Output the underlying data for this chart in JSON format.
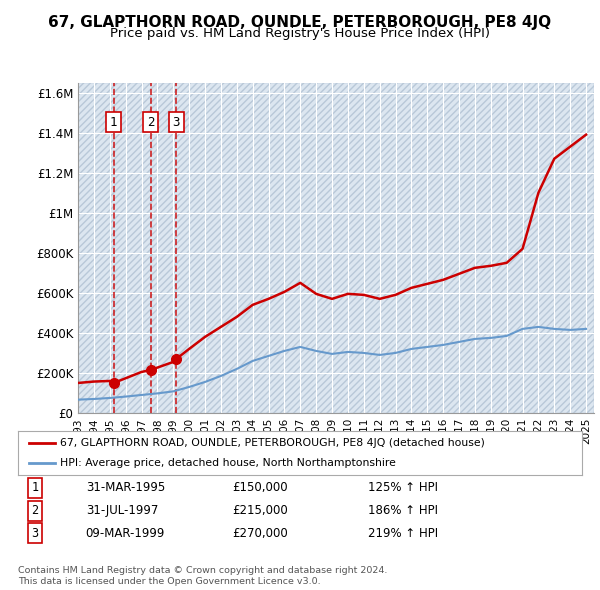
{
  "title": "67, GLAPTHORN ROAD, OUNDLE, PETERBOROUGH, PE8 4JQ",
  "subtitle": "Price paid vs. HM Land Registry's House Price Index (HPI)",
  "ylabel": "",
  "background_color": "#ffffff",
  "plot_bg_color": "#dce6f0",
  "hatch_color": "#c0cfe0",
  "grid_color": "#ffffff",
  "sale_dates": [
    1995.25,
    1997.58,
    1999.19
  ],
  "sale_prices": [
    150000,
    215000,
    270000
  ],
  "sale_labels": [
    "1",
    "2",
    "3"
  ],
  "red_line_color": "#cc0000",
  "blue_line_color": "#6699cc",
  "dashed_line_color": "#cc0000",
  "hpi_years": [
    1993,
    1994,
    1995,
    1996,
    1997,
    1998,
    1999,
    2000,
    2001,
    2002,
    2003,
    2004,
    2005,
    2006,
    2007,
    2008,
    2009,
    2010,
    2011,
    2012,
    2013,
    2014,
    2015,
    2016,
    2017,
    2018,
    2019,
    2020,
    2021,
    2022,
    2023,
    2024,
    2025
  ],
  "hpi_values": [
    66700,
    70000,
    75000,
    82000,
    90000,
    98000,
    108000,
    130000,
    155000,
    185000,
    220000,
    260000,
    285000,
    310000,
    330000,
    310000,
    295000,
    305000,
    300000,
    290000,
    300000,
    320000,
    330000,
    340000,
    355000,
    370000,
    375000,
    385000,
    420000,
    430000,
    420000,
    415000,
    420000
  ],
  "price_line_years": [
    1993,
    1994,
    1995,
    1995.25,
    1997,
    1997.58,
    1999,
    1999.19,
    2000,
    2001,
    2002,
    2003,
    2004,
    2005,
    2006,
    2007,
    2008,
    2009,
    2010,
    2011,
    2012,
    2013,
    2014,
    2015,
    2016,
    2017,
    2018,
    2019,
    2020,
    2021,
    2022,
    2023,
    2024,
    2025
  ],
  "price_line_values": [
    150000,
    157000,
    160000,
    150000,
    205000,
    215000,
    255000,
    270000,
    320000,
    380000,
    430000,
    480000,
    540000,
    570000,
    605000,
    650000,
    595000,
    570000,
    595000,
    590000,
    570000,
    590000,
    625000,
    645000,
    665000,
    695000,
    725000,
    735000,
    750000,
    820000,
    1100000,
    1270000,
    1330000,
    1390000
  ],
  "legend_red_label": "67, GLAPTHORN ROAD, OUNDLE, PETERBOROUGH, PE8 4JQ (detached house)",
  "legend_blue_label": "HPI: Average price, detached house, North Northamptonshire",
  "table_data": [
    [
      "1",
      "31-MAR-1995",
      "£150,000",
      "125% ↑ HPI"
    ],
    [
      "2",
      "31-JUL-1997",
      "£215,000",
      "186% ↑ HPI"
    ],
    [
      "3",
      "09-MAR-1999",
      "£270,000",
      "219% ↑ HPI"
    ]
  ],
  "copyright_text": "Contains HM Land Registry data © Crown copyright and database right 2024.\nThis data is licensed under the Open Government Licence v3.0.",
  "ytick_labels": [
    "£0",
    "£200K",
    "£400K",
    "£600K",
    "£800K",
    "£1M",
    "£1.2M",
    "£1.4M",
    "£1.6M"
  ],
  "ytick_values": [
    0,
    200000,
    400000,
    600000,
    800000,
    1000000,
    1200000,
    1400000,
    1600000
  ],
  "xmin": 1993,
  "xmax": 2025.5,
  "ymin": 0,
  "ymax": 1650000
}
